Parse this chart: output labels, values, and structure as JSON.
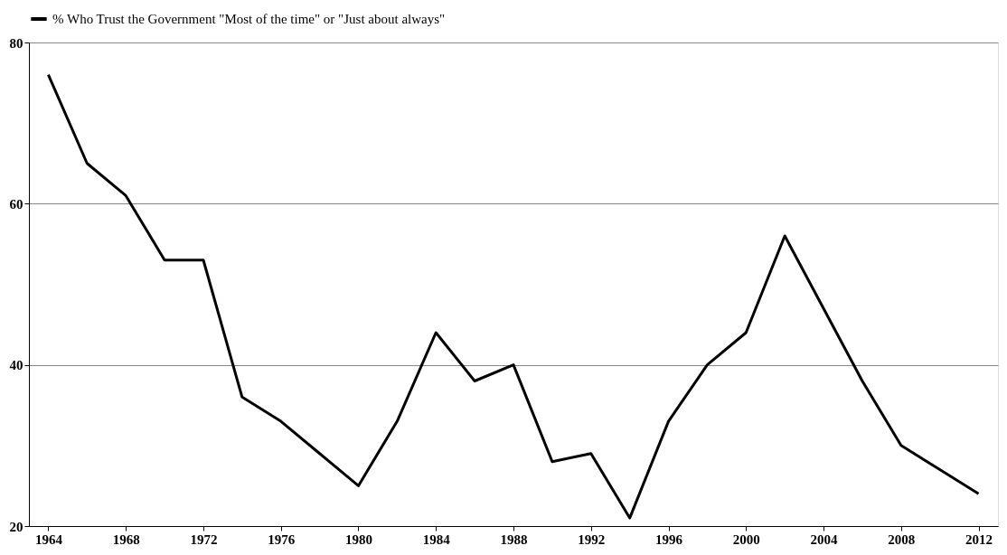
{
  "chart_data": {
    "type": "line",
    "x": [
      1964,
      1966,
      1968,
      1970,
      1972,
      1974,
      1976,
      1978,
      1980,
      1982,
      1984,
      1986,
      1988,
      1990,
      1992,
      1994,
      1996,
      1998,
      2000,
      2002,
      2004,
      2006,
      2008,
      2010,
      2012
    ],
    "series": [
      {
        "name": "% Who Trust the Government \"Most of the time\" or \"Just about always\"",
        "color": "#000000",
        "values": [
          76,
          65,
          61,
          53,
          53,
          36,
          33,
          29,
          25,
          33,
          44,
          38,
          40,
          28,
          29,
          21,
          33,
          40,
          44,
          56,
          47,
          38,
          30,
          27,
          24
        ]
      }
    ],
    "xlim": [
      1963,
      2013
    ],
    "xticks": [
      1964,
      1968,
      1972,
      1976,
      1980,
      1984,
      1988,
      1992,
      1996,
      2000,
      2004,
      2008,
      2012
    ],
    "ylim": [
      20,
      80
    ],
    "yticks": [
      20,
      40,
      60,
      80
    ],
    "grid": "y",
    "legend": "top",
    "marker": "none",
    "line_style": "solid"
  }
}
